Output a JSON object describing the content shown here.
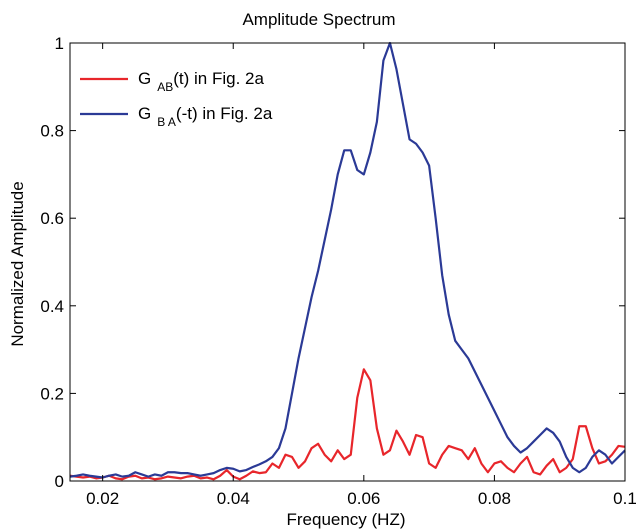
{
  "chart_data": {
    "type": "line",
    "title": "Amplitude Spectrum",
    "xlabel": "Frequency (HZ)",
    "ylabel": "Normalized Amplitude",
    "xlim": [
      0.015,
      0.1
    ],
    "ylim": [
      0,
      1
    ],
    "x_ticks": [
      0.02,
      0.04,
      0.06,
      0.08,
      0.1
    ],
    "x_tick_labels": [
      "0.02",
      "0.04",
      "0.06",
      "0.08",
      "0.1"
    ],
    "y_ticks": [
      0,
      0.2,
      0.4,
      0.6,
      0.8,
      1
    ],
    "y_tick_labels": [
      "0",
      "0.2",
      "0.4",
      "0.6",
      "0.8",
      "1"
    ],
    "grid": false,
    "legend_position": "top-left",
    "legend": [
      {
        "prefix": "G",
        "subscript": "AB",
        "suffix": "(t) in Fig. 2a",
        "color": "#e8262b"
      },
      {
        "prefix": "G",
        "subscript": "B A",
        "suffix": "(-t) in Fig. 2a",
        "color": "#2b3a96"
      }
    ],
    "series": [
      {
        "color": "#e8262b",
        "x": [
          0.015,
          0.016,
          0.017,
          0.018,
          0.019,
          0.02,
          0.021,
          0.022,
          0.023,
          0.024,
          0.025,
          0.026,
          0.027,
          0.028,
          0.029,
          0.03,
          0.031,
          0.032,
          0.033,
          0.034,
          0.035,
          0.036,
          0.037,
          0.038,
          0.039,
          0.04,
          0.041,
          0.042,
          0.043,
          0.044,
          0.045,
          0.046,
          0.047,
          0.048,
          0.049,
          0.05,
          0.051,
          0.052,
          0.053,
          0.054,
          0.055,
          0.056,
          0.057,
          0.058,
          0.059,
          0.06,
          0.061,
          0.062,
          0.063,
          0.064,
          0.065,
          0.066,
          0.067,
          0.068,
          0.069,
          0.07,
          0.071,
          0.072,
          0.073,
          0.074,
          0.075,
          0.076,
          0.077,
          0.078,
          0.079,
          0.08,
          0.081,
          0.082,
          0.083,
          0.084,
          0.085,
          0.086,
          0.087,
          0.088,
          0.089,
          0.09,
          0.091,
          0.092,
          0.093,
          0.094,
          0.095,
          0.096,
          0.097,
          0.098,
          0.099,
          0.1
        ],
        "y": [
          0.012,
          0.01,
          0.008,
          0.01,
          0.006,
          0.008,
          0.012,
          0.006,
          0.004,
          0.01,
          0.012,
          0.006,
          0.008,
          0.004,
          0.006,
          0.01,
          0.008,
          0.006,
          0.01,
          0.012,
          0.006,
          0.008,
          0.004,
          0.012,
          0.025,
          0.01,
          0.004,
          0.012,
          0.022,
          0.018,
          0.02,
          0.04,
          0.03,
          0.06,
          0.055,
          0.03,
          0.045,
          0.075,
          0.085,
          0.06,
          0.045,
          0.07,
          0.05,
          0.06,
          0.19,
          0.255,
          0.23,
          0.12,
          0.06,
          0.07,
          0.115,
          0.09,
          0.06,
          0.105,
          0.1,
          0.04,
          0.03,
          0.06,
          0.08,
          0.075,
          0.07,
          0.05,
          0.075,
          0.04,
          0.02,
          0.04,
          0.045,
          0.03,
          0.02,
          0.04,
          0.055,
          0.02,
          0.015,
          0.035,
          0.05,
          0.02,
          0.03,
          0.05,
          0.125,
          0.125,
          0.075,
          0.04,
          0.045,
          0.06,
          0.08,
          0.078
        ]
      },
      {
        "color": "#2b3a96",
        "x": [
          0.015,
          0.016,
          0.017,
          0.018,
          0.019,
          0.02,
          0.021,
          0.022,
          0.023,
          0.024,
          0.025,
          0.026,
          0.027,
          0.028,
          0.029,
          0.03,
          0.031,
          0.032,
          0.033,
          0.034,
          0.035,
          0.036,
          0.037,
          0.038,
          0.039,
          0.04,
          0.041,
          0.042,
          0.043,
          0.044,
          0.045,
          0.046,
          0.047,
          0.048,
          0.049,
          0.05,
          0.051,
          0.052,
          0.053,
          0.054,
          0.055,
          0.056,
          0.057,
          0.058,
          0.059,
          0.06,
          0.061,
          0.062,
          0.063,
          0.064,
          0.065,
          0.066,
          0.067,
          0.068,
          0.069,
          0.07,
          0.071,
          0.072,
          0.073,
          0.074,
          0.075,
          0.076,
          0.077,
          0.078,
          0.079,
          0.08,
          0.081,
          0.082,
          0.083,
          0.084,
          0.085,
          0.086,
          0.087,
          0.088,
          0.089,
          0.09,
          0.091,
          0.092,
          0.093,
          0.094,
          0.095,
          0.096,
          0.097,
          0.098,
          0.099,
          0.1
        ],
        "y": [
          0.01,
          0.012,
          0.015,
          0.012,
          0.01,
          0.008,
          0.012,
          0.015,
          0.01,
          0.012,
          0.02,
          0.015,
          0.01,
          0.015,
          0.012,
          0.02,
          0.02,
          0.018,
          0.018,
          0.015,
          0.012,
          0.015,
          0.018,
          0.025,
          0.03,
          0.028,
          0.022,
          0.025,
          0.032,
          0.038,
          0.045,
          0.055,
          0.075,
          0.12,
          0.2,
          0.28,
          0.35,
          0.42,
          0.48,
          0.55,
          0.62,
          0.7,
          0.755,
          0.755,
          0.71,
          0.7,
          0.75,
          0.82,
          0.96,
          1.0,
          0.94,
          0.86,
          0.78,
          0.77,
          0.75,
          0.72,
          0.6,
          0.47,
          0.38,
          0.32,
          0.3,
          0.28,
          0.25,
          0.22,
          0.19,
          0.16,
          0.13,
          0.1,
          0.08,
          0.065,
          0.075,
          0.09,
          0.105,
          0.12,
          0.11,
          0.09,
          0.055,
          0.03,
          0.02,
          0.03,
          0.055,
          0.07,
          0.06,
          0.04,
          0.055,
          0.07
        ]
      }
    ]
  }
}
